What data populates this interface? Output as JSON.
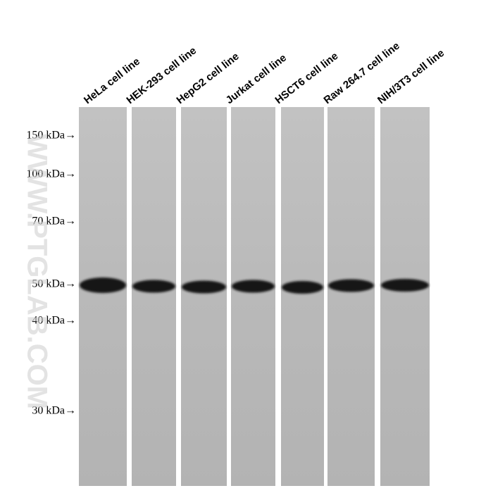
{
  "lanes": [
    {
      "label": "HeLa cell line"
    },
    {
      "label": "HEK-293 cell line"
    },
    {
      "label": "HepG2 cell line"
    },
    {
      "label": "Jurkat cell line"
    },
    {
      "label": "HSCT6 cell line"
    },
    {
      "label": "Raw 264.7 cell line"
    },
    {
      "label": "NIH/3T3 cell line"
    }
  ],
  "markers": [
    {
      "label": "150 kDa→"
    },
    {
      "label": "100 kDa→"
    },
    {
      "label": "70 kDa→"
    },
    {
      "label": "50 kDa→"
    },
    {
      "label": "40 kDa→"
    },
    {
      "label": "30 kDa→"
    }
  ],
  "watermark": "WWW.PTGLAB.COM"
}
